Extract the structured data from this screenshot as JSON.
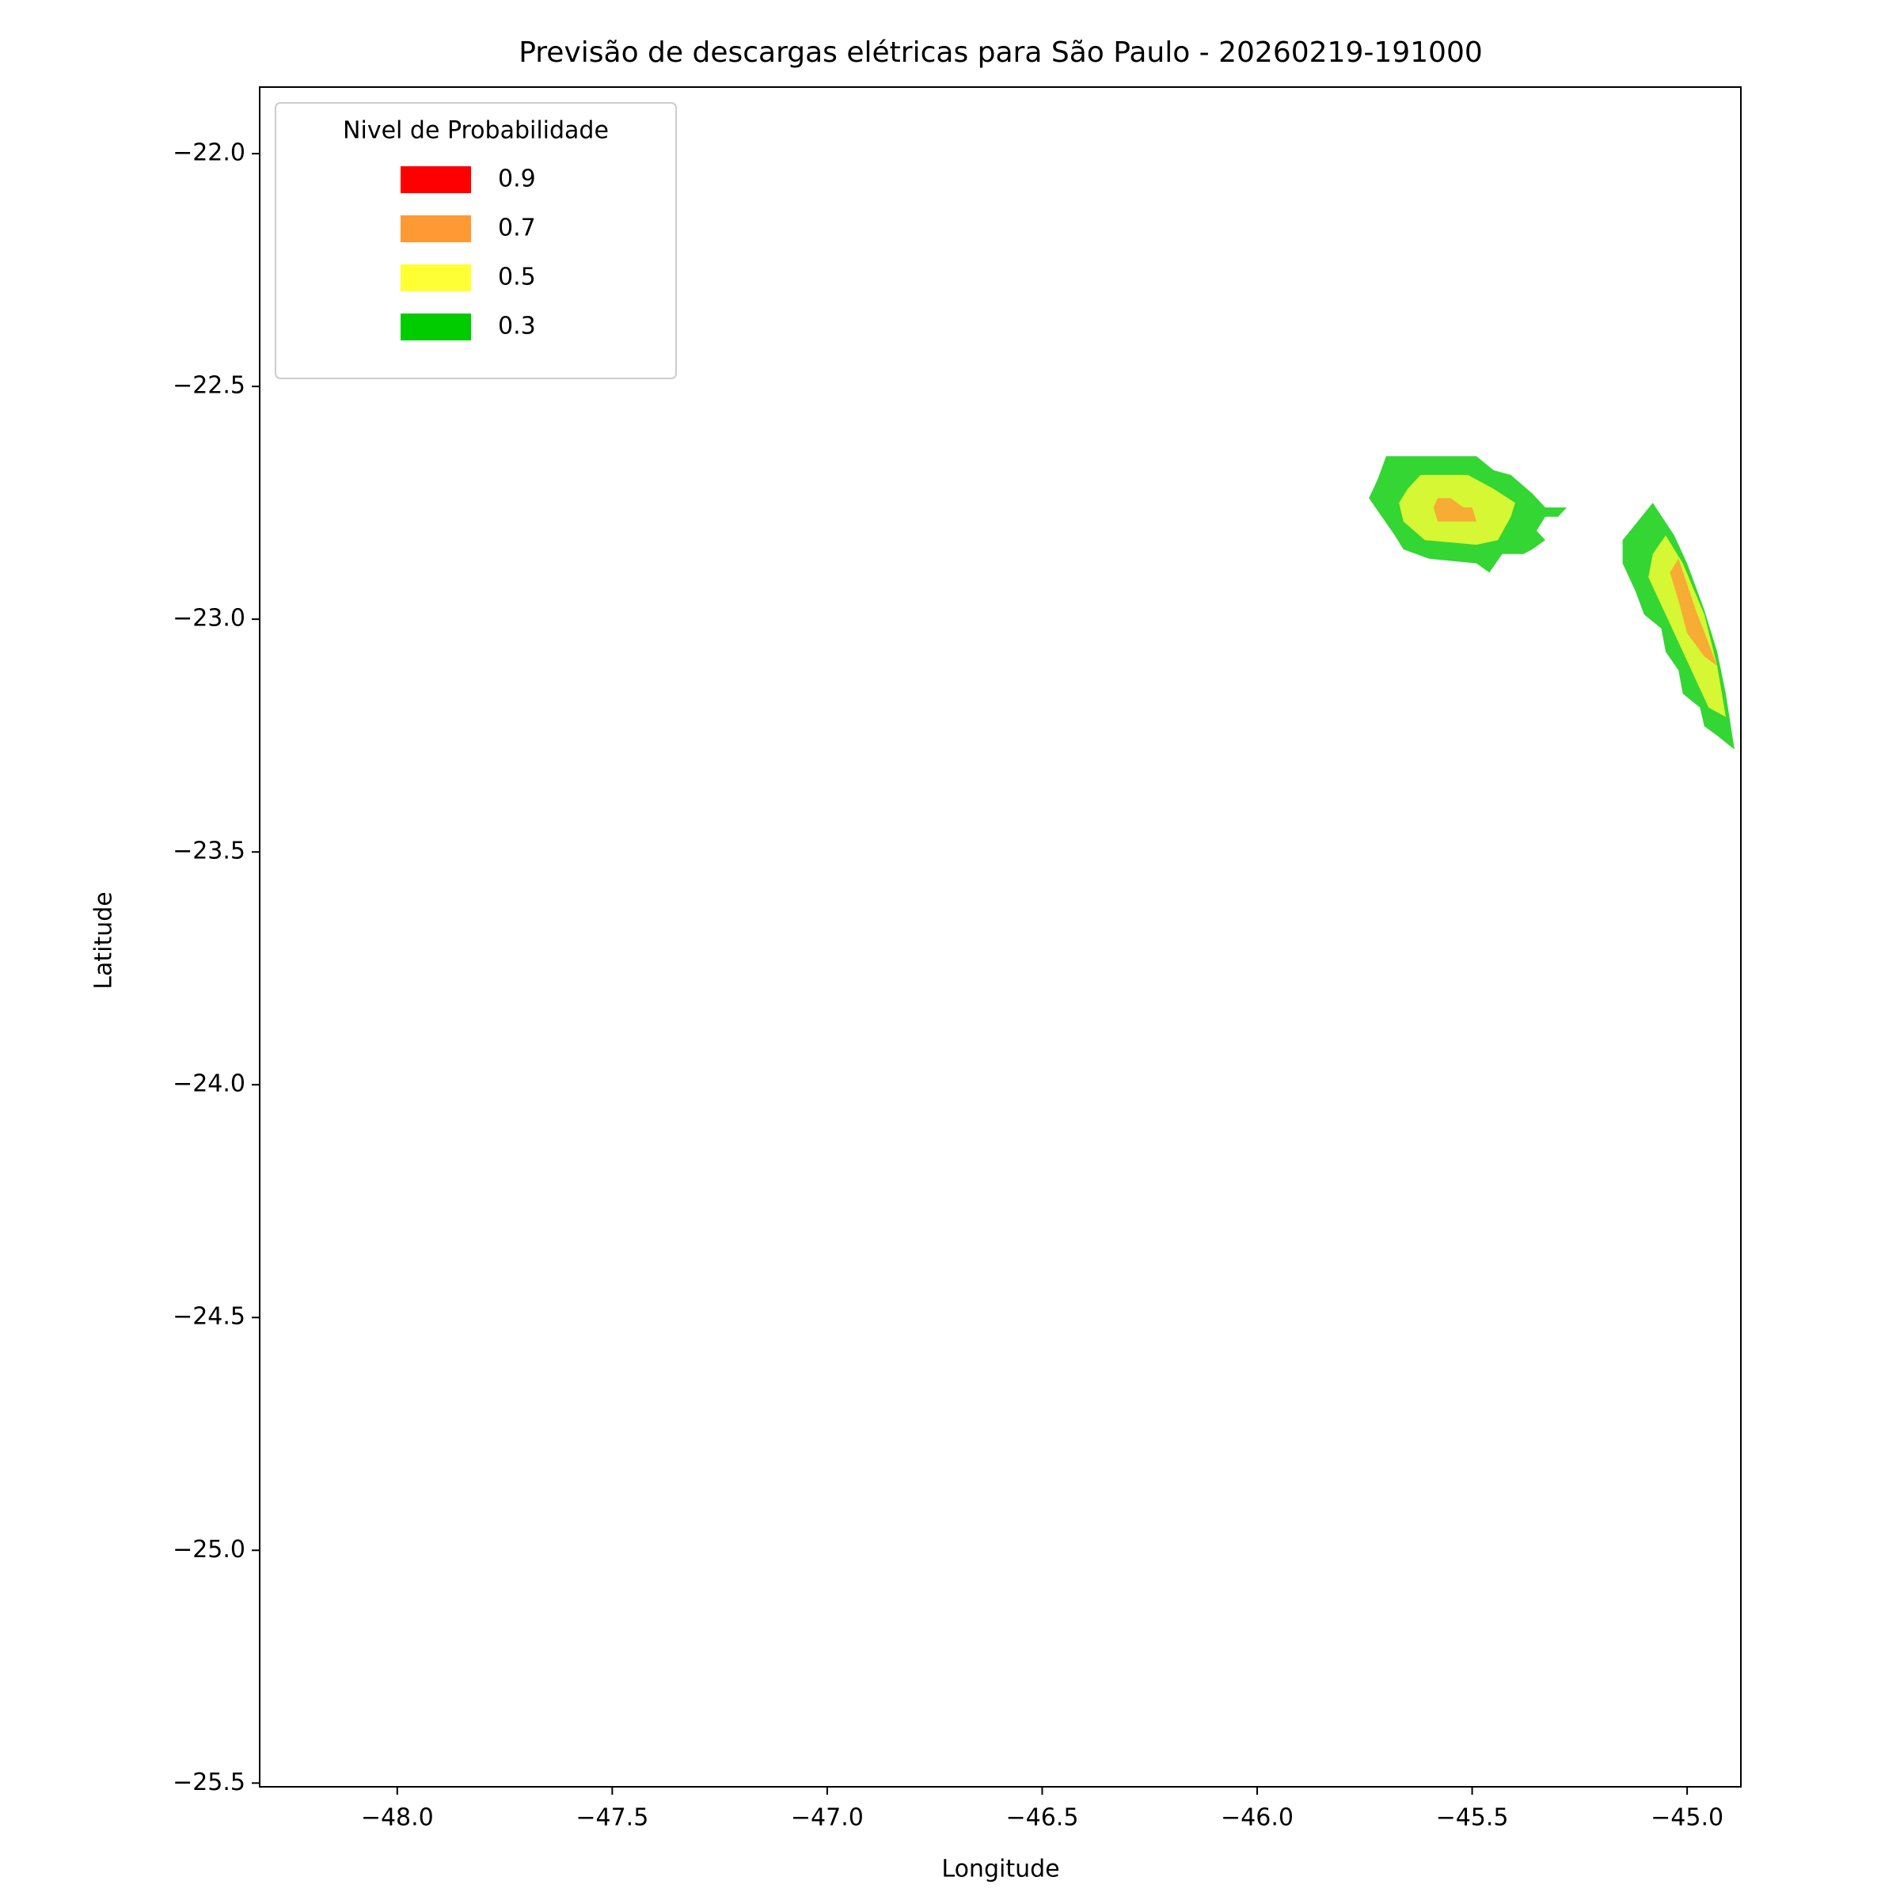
{
  "chart_data": {
    "type": "contour",
    "title": "Previsão de descargas elétricas para São Paulo - 20260219-191000",
    "x_label": "Longitude",
    "y_label": "Latitude",
    "xlim": [
      -48.32,
      -44.875
    ],
    "ylim": [
      -25.508,
      -21.857
    ],
    "xticks": [
      {
        "value": -48,
        "label": "−48.0"
      },
      {
        "value": -47.5,
        "label": "−47.5"
      },
      {
        "value": -47,
        "label": "−47.0"
      },
      {
        "value": -46.5,
        "label": "−46.5"
      },
      {
        "value": -46,
        "label": "−46.0"
      },
      {
        "value": -45.5,
        "label": "−45.5"
      },
      {
        "value": -45,
        "label": "−45.0"
      }
    ],
    "yticks": [
      {
        "value": -22,
        "label": "−22.0"
      },
      {
        "value": -22.5,
        "label": "−22.5"
      },
      {
        "value": -23,
        "label": "−23.0"
      },
      {
        "value": -23.5,
        "label": "−23.5"
      },
      {
        "value": -24,
        "label": "−24.0"
      },
      {
        "value": -24.5,
        "label": "−24.5"
      },
      {
        "value": -25,
        "label": "−25.0"
      },
      {
        "value": -25.5,
        "label": "−25.5"
      }
    ],
    "legend_title": "Nivel de Probabilidade",
    "legend": "upper left",
    "alpha": 0.8,
    "series": [
      {
        "name": "0.9",
        "color": "#ff0000",
        "polygons": []
      },
      {
        "name": "0.7",
        "color": "#ff9933",
        "polygons": [
          {
            "lon": [
              -45.58,
              -45.55,
              -45.52,
              -45.5,
              -45.49,
              -45.58,
              -45.59
            ],
            "lat": [
              -22.74,
              -22.74,
              -22.76,
              -22.76,
              -22.79,
              -22.79,
              -22.76
            ]
          },
          {
            "lon": [
              -45.02,
              -44.98,
              -44.93,
              -44.96,
              -45.0,
              -45.02,
              -45.04
            ],
            "lat": [
              -22.87,
              -22.98,
              -23.1,
              -23.08,
              -23.03,
              -22.96,
              -22.9
            ]
          }
        ]
      },
      {
        "name": "0.5",
        "color": "#ffff33",
        "polygons": [
          {
            "lon": [
              -45.62,
              -45.51,
              -45.45,
              -45.4,
              -45.41,
              -45.44,
              -45.49,
              -45.61,
              -45.66,
              -45.67,
              -45.65
            ],
            "lat": [
              -22.69,
              -22.69,
              -22.72,
              -22.75,
              -22.78,
              -22.83,
              -22.84,
              -22.83,
              -22.79,
              -22.75,
              -22.72
            ]
          },
          {
            "lon": [
              -45.05,
              -45.01,
              -44.96,
              -44.93,
              -44.91,
              -44.95,
              -44.98,
              -45.01,
              -45.05,
              -45.09,
              -45.08
            ],
            "lat": [
              -22.82,
              -22.88,
              -22.99,
              -23.1,
              -23.21,
              -23.19,
              -23.13,
              -23.07,
              -22.99,
              -22.91,
              -22.86
            ]
          }
        ]
      },
      {
        "name": "0.3",
        "color": "#00cc00",
        "polygons": [
          {
            "lon": [
              -45.7,
              -45.49,
              -45.45,
              -45.41,
              -45.36,
              -45.33,
              -45.31,
              -45.28,
              -45.3,
              -45.33,
              -45.35,
              -45.33,
              -45.36,
              -45.38,
              -45.43,
              -45.46,
              -45.49,
              -45.6,
              -45.66,
              -45.68,
              -45.71,
              -45.74,
              -45.72
            ],
            "lat": [
              -22.65,
              -22.65,
              -22.68,
              -22.69,
              -22.73,
              -22.76,
              -22.76,
              -22.76,
              -22.78,
              -22.78,
              -22.81,
              -22.83,
              -22.85,
              -22.86,
              -22.86,
              -22.9,
              -22.88,
              -22.87,
              -22.85,
              -22.82,
              -22.78,
              -22.74,
              -22.7
            ]
          },
          {
            "lon": [
              -45.08,
              -45.03,
              -45.0,
              -44.96,
              -44.93,
              -44.91,
              -44.89,
              -44.93,
              -44.96,
              -44.97,
              -45.01,
              -45.02,
              -45.05,
              -45.06,
              -45.1,
              -45.12,
              -45.15,
              -45.15
            ],
            "lat": [
              -22.75,
              -22.82,
              -22.88,
              -22.98,
              -23.07,
              -23.16,
              -23.28,
              -23.25,
              -23.23,
              -23.19,
              -23.16,
              -23.11,
              -23.07,
              -23.02,
              -22.99,
              -22.94,
              -22.88,
              -22.83
            ]
          }
        ]
      }
    ]
  }
}
